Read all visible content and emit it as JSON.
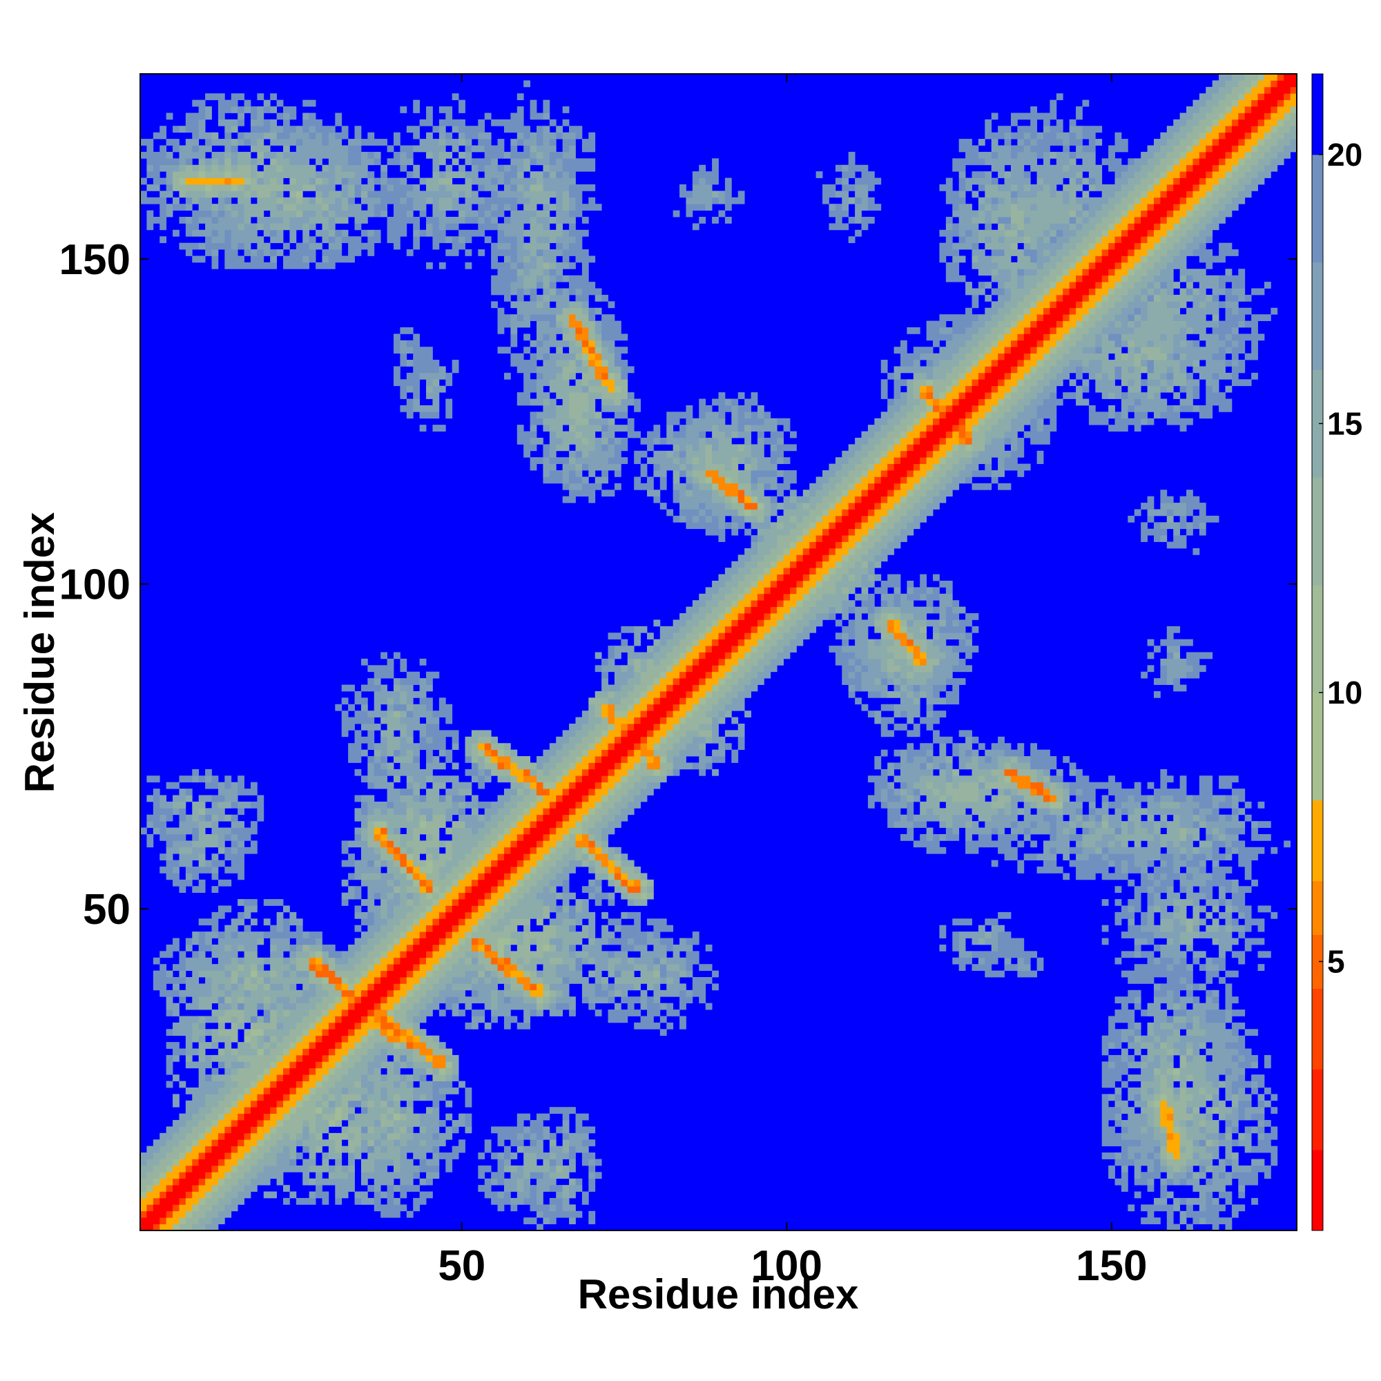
{
  "chart_data": {
    "type": "heatmap",
    "title": "",
    "xlabel": "Residue index",
    "ylabel": "Residue index",
    "n_residues": 178,
    "xlim": [
      1,
      178
    ],
    "ylim": [
      1,
      178
    ],
    "x_ticks": [
      50,
      100,
      150
    ],
    "y_ticks": [
      50,
      100,
      150
    ],
    "colorbar": {
      "range": [
        0,
        21.5
      ],
      "ticks": [
        5,
        10,
        15,
        20
      ],
      "colors": [
        "#ff0000",
        "#ff2200",
        "#ff4400",
        "#ff6600",
        "#ff8800",
        "#ffaa00",
        "#a8c090",
        "#a0bc98",
        "#98b4a0",
        "#8cacac",
        "#80a0b8",
        "#7090c0",
        "#0000ff"
      ],
      "boundaries": [
        0,
        1.5,
        3,
        4.5,
        5.5,
        6.5,
        8,
        10,
        12,
        14,
        16,
        18,
        20,
        21.5
      ]
    },
    "diagonal_contacts": [
      {
        "x": [
          1,
          178
        ],
        "y": [
          1,
          178
        ],
        "value": 1.5,
        "note_ref": "main-diagonal"
      }
    ],
    "contact_segments": [
      {
        "x": [
          27,
          40
        ],
        "y": [
          42,
          30
        ],
        "value": 5
      },
      {
        "x": [
          37,
          47
        ],
        "y": [
          34,
          26
        ],
        "value": 5
      },
      {
        "x": [
          37,
          45
        ],
        "y": [
          62,
          53
        ],
        "value": 5
      },
      {
        "x": [
          52,
          62
        ],
        "y": [
          45,
          37
        ],
        "value": 5
      },
      {
        "x": [
          53,
          63
        ],
        "y": [
          75,
          68
        ],
        "value": 5
      },
      {
        "x": [
          68,
          77
        ],
        "y": [
          61,
          53
        ],
        "value": 5
      },
      {
        "x": [
          72,
          80
        ],
        "y": [
          81,
          72
        ],
        "value": 5
      },
      {
        "x": [
          88,
          95
        ],
        "y": [
          117,
          112
        ],
        "value": 5
      },
      {
        "x": [
          116,
          121
        ],
        "y": [
          94,
          88
        ],
        "value": 5
      },
      {
        "x": [
          121,
          128
        ],
        "y": [
          130,
          122
        ],
        "value": 5
      },
      {
        "x": [
          134,
          141
        ],
        "y": [
          71,
          67
        ],
        "value": 5
      },
      {
        "x": [
          67,
          73
        ],
        "y": [
          141,
          130
        ],
        "value": 5
      },
      {
        "x": [
          8,
          16
        ],
        "y": [
          162,
          162
        ],
        "value": 6
      },
      {
        "x": [
          158,
          160
        ],
        "y": [
          20,
          12
        ],
        "value": 6
      }
    ],
    "contact_blobs": [
      {
        "cx": 18,
        "cy": 162,
        "rx": 19,
        "ry": 14,
        "value": 13
      },
      {
        "cx": 48,
        "cy": 162,
        "rx": 12,
        "ry": 14,
        "value": 14
      },
      {
        "cx": 62,
        "cy": 150,
        "rx": 8,
        "ry": 24,
        "value": 14
      },
      {
        "cx": 68,
        "cy": 126,
        "rx": 10,
        "ry": 14,
        "value": 13
      },
      {
        "cx": 45,
        "cy": 130,
        "rx": 6,
        "ry": 8,
        "value": 15
      },
      {
        "cx": 88,
        "cy": 118,
        "rx": 12,
        "ry": 10,
        "value": 13
      },
      {
        "cx": 128,
        "cy": 130,
        "rx": 14,
        "ry": 12,
        "value": 13
      },
      {
        "cx": 155,
        "cy": 135,
        "rx": 18,
        "ry": 12,
        "value": 13
      },
      {
        "cx": 142,
        "cy": 158,
        "rx": 14,
        "ry": 18,
        "value": 14
      },
      {
        "cx": 118,
        "cy": 92,
        "rx": 12,
        "ry": 10,
        "value": 13
      },
      {
        "cx": 130,
        "cy": 68,
        "rx": 18,
        "ry": 8,
        "value": 13
      },
      {
        "cx": 160,
        "cy": 62,
        "rx": 18,
        "ry": 10,
        "value": 14
      },
      {
        "cx": 160,
        "cy": 25,
        "rx": 12,
        "ry": 18,
        "value": 13
      },
      {
        "cx": 10,
        "cy": 65,
        "rx": 12,
        "ry": 7,
        "value": 14
      },
      {
        "cx": 18,
        "cy": 40,
        "rx": 16,
        "ry": 8,
        "value": 13
      },
      {
        "cx": 30,
        "cy": 18,
        "rx": 22,
        "ry": 14,
        "value": 12
      },
      {
        "cx": 45,
        "cy": 55,
        "rx": 14,
        "ry": 14,
        "value": 12
      },
      {
        "cx": 62,
        "cy": 45,
        "rx": 14,
        "ry": 12,
        "value": 12
      },
      {
        "cx": 60,
        "cy": 10,
        "rx": 8,
        "ry": 9,
        "value": 14
      },
      {
        "cx": 80,
        "cy": 85,
        "rx": 10,
        "ry": 10,
        "value": 12
      },
      {
        "cx": 105,
        "cy": 105,
        "rx": 10,
        "ry": 10,
        "value": 10
      },
      {
        "cx": 75,
        "cy": 40,
        "rx": 10,
        "ry": 8,
        "value": 14
      },
      {
        "cx": 40,
        "cy": 80,
        "rx": 10,
        "ry": 10,
        "value": 14
      },
      {
        "cx": 160,
        "cy": 88,
        "rx": 8,
        "ry": 8,
        "value": 16
      },
      {
        "cx": 135,
        "cy": 42,
        "rx": 6,
        "ry": 5,
        "value": 16
      },
      {
        "cx": 110,
        "cy": 160,
        "rx": 8,
        "ry": 10,
        "value": 16
      }
    ]
  }
}
